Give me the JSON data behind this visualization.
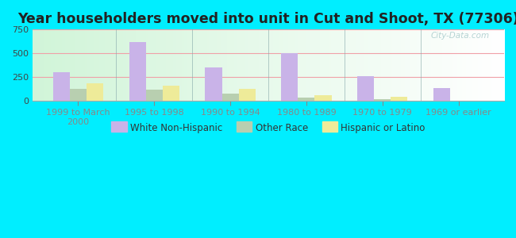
{
  "title": "Year householders moved into unit in Cut and Shoot, TX (77306)",
  "categories": [
    "1999 to March\n2000",
    "1995 to 1998",
    "1990 to 1994",
    "1980 to 1989",
    "1970 to 1979",
    "1969 or earlier"
  ],
  "series": {
    "White Non-Hispanic": [
      300,
      620,
      350,
      500,
      255,
      130
    ],
    "Other Race": [
      125,
      120,
      75,
      35,
      20,
      0
    ],
    "Hispanic or Latino": [
      185,
      160,
      125,
      60,
      45,
      0
    ]
  },
  "colors": {
    "White Non-Hispanic": "#c9b3e8",
    "Other Race": "#b8cfb0",
    "Hispanic or Latino": "#eeeb99"
  },
  "ylim": [
    0,
    750
  ],
  "yticks": [
    0,
    250,
    500,
    750
  ],
  "background_color": "#00eeff",
  "watermark": "City-Data.com",
  "bar_width": 0.22,
  "title_fontsize": 12.5,
  "legend_fontsize": 8.5,
  "tick_fontsize": 8,
  "grid_color": "#f0a0a8",
  "separator_color": "#88aaaa"
}
